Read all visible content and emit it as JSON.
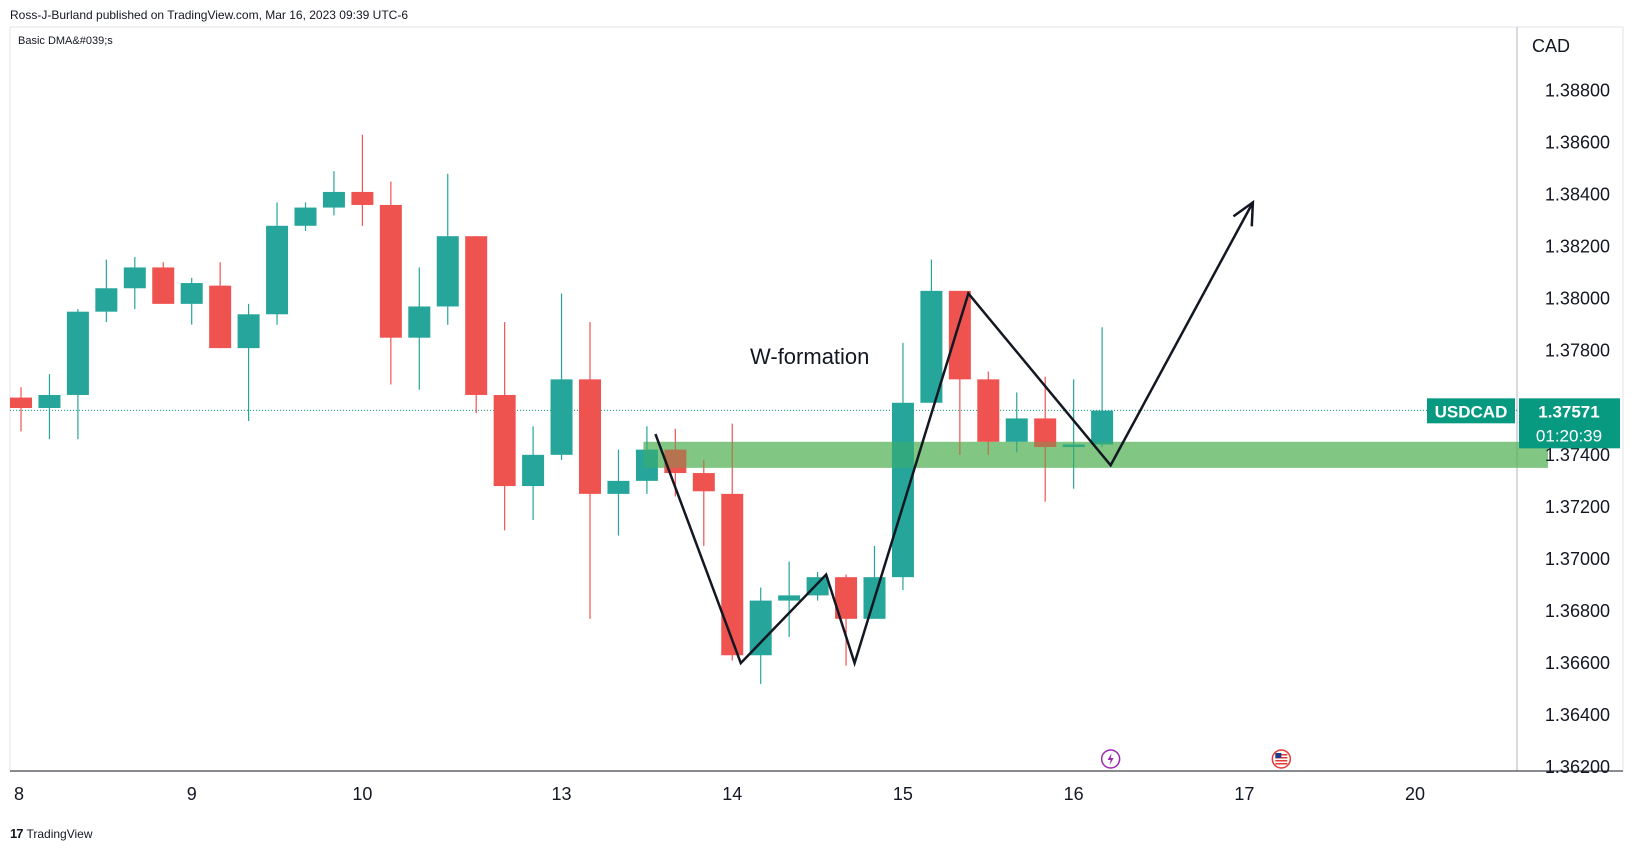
{
  "header": {
    "publisher": "Ross-J-Burland published on TradingView.com, Mar 16, 2023 09:39 UTC-6",
    "indicator": "Basic DMA&#039;s",
    "currency": "CAD"
  },
  "footer": {
    "logo_mark": "17",
    "logo_text": "TradingView"
  },
  "colors": {
    "up": "#26a69a",
    "down": "#ef5350",
    "zone": "#4caf50",
    "tag": "#089981",
    "line": "#131722"
  },
  "chart_data": {
    "type": "candlestick",
    "symbol": "USDCAD",
    "last_price": "1.37571",
    "countdown": "01:20:39",
    "annotation": "W-formation",
    "ylim": [
      1.3612,
      1.3894
    ],
    "yticks": [
      "1.38800",
      "1.38600",
      "1.38400",
      "1.38200",
      "1.38000",
      "1.37800",
      "1.37400",
      "1.37200",
      "1.37000",
      "1.36800",
      "1.36600",
      "1.36400",
      "1.36200"
    ],
    "xticks": [
      {
        "label": "8",
        "bar": 0
      },
      {
        "label": "9",
        "bar": 6
      },
      {
        "label": "10",
        "bar": 12
      },
      {
        "label": "13",
        "bar": 19
      },
      {
        "label": "14",
        "bar": 25
      },
      {
        "label": "15",
        "bar": 31
      },
      {
        "label": "16",
        "bar": 37
      },
      {
        "label": "17",
        "bar": 43
      },
      {
        "label": "20",
        "bar": 49
      }
    ],
    "candles": [
      {
        "o": 1.3762,
        "h": 1.3766,
        "l": 1.3749,
        "c": 1.3758
      },
      {
        "o": 1.3758,
        "h": 1.3771,
        "l": 1.3746,
        "c": 1.3763
      },
      {
        "o": 1.3763,
        "h": 1.3796,
        "l": 1.3746,
        "c": 1.3795
      },
      {
        "o": 1.3795,
        "h": 1.3815,
        "l": 1.3791,
        "c": 1.3804
      },
      {
        "o": 1.3804,
        "h": 1.3816,
        "l": 1.3796,
        "c": 1.3812
      },
      {
        "o": 1.3812,
        "h": 1.3814,
        "l": 1.3798,
        "c": 1.3798
      },
      {
        "o": 1.3798,
        "h": 1.3808,
        "l": 1.379,
        "c": 1.3806
      },
      {
        "o": 1.3805,
        "h": 1.3814,
        "l": 1.3781,
        "c": 1.3781
      },
      {
        "o": 1.3781,
        "h": 1.3798,
        "l": 1.3753,
        "c": 1.3794
      },
      {
        "o": 1.3794,
        "h": 1.3837,
        "l": 1.379,
        "c": 1.3828
      },
      {
        "o": 1.3828,
        "h": 1.3837,
        "l": 1.3826,
        "c": 1.3835
      },
      {
        "o": 1.3835,
        "h": 1.3849,
        "l": 1.3832,
        "c": 1.3841
      },
      {
        "o": 1.3841,
        "h": 1.3863,
        "l": 1.3828,
        "c": 1.3836
      },
      {
        "o": 1.3836,
        "h": 1.3845,
        "l": 1.3767,
        "c": 1.3785
      },
      {
        "o": 1.3785,
        "h": 1.3812,
        "l": 1.3765,
        "c": 1.3797
      },
      {
        "o": 1.3797,
        "h": 1.3848,
        "l": 1.379,
        "c": 1.3824
      },
      {
        "o": 1.3824,
        "h": 1.3824,
        "l": 1.3756,
        "c": 1.3763
      },
      {
        "o": 1.3763,
        "h": 1.3791,
        "l": 1.3711,
        "c": 1.3728
      },
      {
        "o": 1.3728,
        "h": 1.3751,
        "l": 1.3715,
        "c": 1.374
      },
      {
        "o": 1.374,
        "h": 1.3802,
        "l": 1.3738,
        "c": 1.3769
      },
      {
        "o": 1.3769,
        "h": 1.3791,
        "l": 1.3677,
        "c": 1.3725
      },
      {
        "o": 1.3725,
        "h": 1.3742,
        "l": 1.3709,
        "c": 1.373
      },
      {
        "o": 1.373,
        "h": 1.3751,
        "l": 1.3725,
        "c": 1.3742
      },
      {
        "o": 1.3742,
        "h": 1.375,
        "l": 1.3724,
        "c": 1.3733
      },
      {
        "o": 1.3733,
        "h": 1.3738,
        "l": 1.3705,
        "c": 1.3726
      },
      {
        "o": 1.3725,
        "h": 1.3752,
        "l": 1.3661,
        "c": 1.3663
      },
      {
        "o": 1.3663,
        "h": 1.3689,
        "l": 1.3652,
        "c": 1.3684
      },
      {
        "o": 1.3684,
        "h": 1.3699,
        "l": 1.367,
        "c": 1.3686
      },
      {
        "o": 1.3686,
        "h": 1.3695,
        "l": 1.3684,
        "c": 1.3693
      },
      {
        "o": 1.3693,
        "h": 1.3694,
        "l": 1.3659,
        "c": 1.3677
      },
      {
        "o": 1.3677,
        "h": 1.3705,
        "l": 1.3677,
        "c": 1.3693
      },
      {
        "o": 1.3693,
        "h": 1.3783,
        "l": 1.3688,
        "c": 1.376
      },
      {
        "o": 1.376,
        "h": 1.3815,
        "l": 1.376,
        "c": 1.3803
      },
      {
        "o": 1.3803,
        "h": 1.3803,
        "l": 1.374,
        "c": 1.3769
      },
      {
        "o": 1.3769,
        "h": 1.3772,
        "l": 1.374,
        "c": 1.3745
      },
      {
        "o": 1.3745,
        "h": 1.3764,
        "l": 1.3741,
        "c": 1.3754
      },
      {
        "o": 1.3754,
        "h": 1.377,
        "l": 1.3722,
        "c": 1.3743
      },
      {
        "o": 1.3743,
        "h": 1.3769,
        "l": 1.3727,
        "c": 1.3744
      },
      {
        "o": 1.3744,
        "h": 1.3789,
        "l": 1.3743,
        "c": 1.3757
      }
    ],
    "support_zone": {
      "from": 1.3735,
      "to": 1.3745
    },
    "w_formation_path": [
      {
        "bar": 22.3,
        "price": 1.3748
      },
      {
        "bar": 25.3,
        "price": 1.366
      },
      {
        "bar": 28.3,
        "price": 1.3694
      },
      {
        "bar": 29.3,
        "price": 1.366
      },
      {
        "bar": 33.3,
        "price": 1.3802
      },
      {
        "bar": 38.3,
        "price": 1.3736
      },
      {
        "bar": 43.3,
        "price": 1.3837
      }
    ],
    "events": [
      {
        "icon": "lightning-event-icon",
        "bar": 38.3
      },
      {
        "icon": "us-flag-event-icon",
        "bar": 44.3
      }
    ]
  }
}
